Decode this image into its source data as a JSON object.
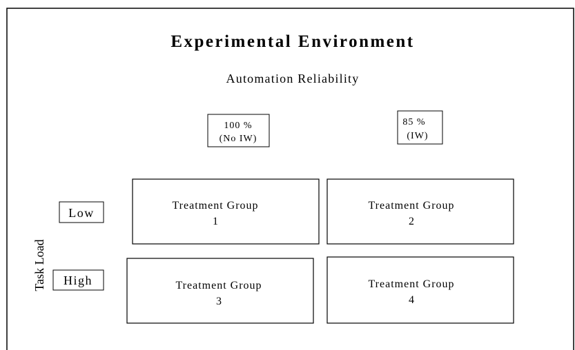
{
  "title": "Experimental Environment",
  "subtitle": "Automation Reliability",
  "columns": [
    [
      "100 %",
      "(No IW)"
    ],
    [
      "85 %",
      "(IW)"
    ]
  ],
  "rows": [
    "Low",
    "High"
  ],
  "row_axis_label": "Task Load",
  "groups": [
    [
      "Treatment Group",
      "1"
    ],
    [
      "Treatment Group",
      "2"
    ],
    [
      "Treatment Group",
      "3"
    ],
    [
      "Treatment Group",
      "4"
    ]
  ]
}
